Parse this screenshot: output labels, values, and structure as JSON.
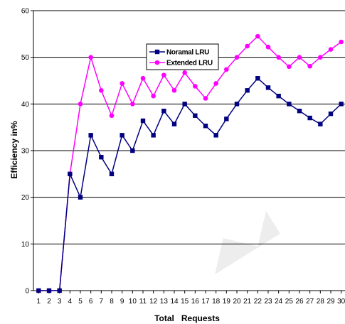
{
  "chart_data": {
    "type": "line",
    "title": "",
    "xlabel": "Total   Requests",
    "ylabel": "Efficiency in%",
    "x": [
      1,
      2,
      3,
      4,
      5,
      6,
      7,
      8,
      9,
      10,
      11,
      12,
      13,
      14,
      15,
      16,
      17,
      18,
      19,
      20,
      21,
      22,
      23,
      24,
      25,
      26,
      27,
      28,
      29,
      30
    ],
    "ylim": [
      0,
      60
    ],
    "yticks": [
      0,
      10,
      20,
      30,
      40,
      50,
      60
    ],
    "grid": "horizontal",
    "legend_placement": "top-center",
    "series": [
      {
        "name": "Noramal LRU",
        "color": "#000080",
        "marker": "square",
        "values": [
          0,
          0,
          0,
          25,
          20,
          33.3,
          28.6,
          25,
          33.3,
          30,
          36.4,
          33.3,
          38.5,
          35.7,
          40,
          37.5,
          35.3,
          33.3,
          36.8,
          40,
          42.9,
          45.5,
          43.5,
          41.7,
          40,
          38.5,
          37,
          35.7,
          37.9,
          40
        ]
      },
      {
        "name": "Extended LRU",
        "color": "#FF00FF",
        "marker": "circle",
        "values": [
          0,
          0,
          0,
          25,
          40,
          50,
          42.9,
          37.5,
          44.4,
          40,
          45.5,
          41.7,
          46.2,
          42.9,
          46.7,
          43.8,
          41.2,
          44.4,
          47.4,
          50,
          52.4,
          54.5,
          52.2,
          50,
          48,
          50,
          48.1,
          50,
          51.7,
          53.3
        ]
      }
    ]
  }
}
